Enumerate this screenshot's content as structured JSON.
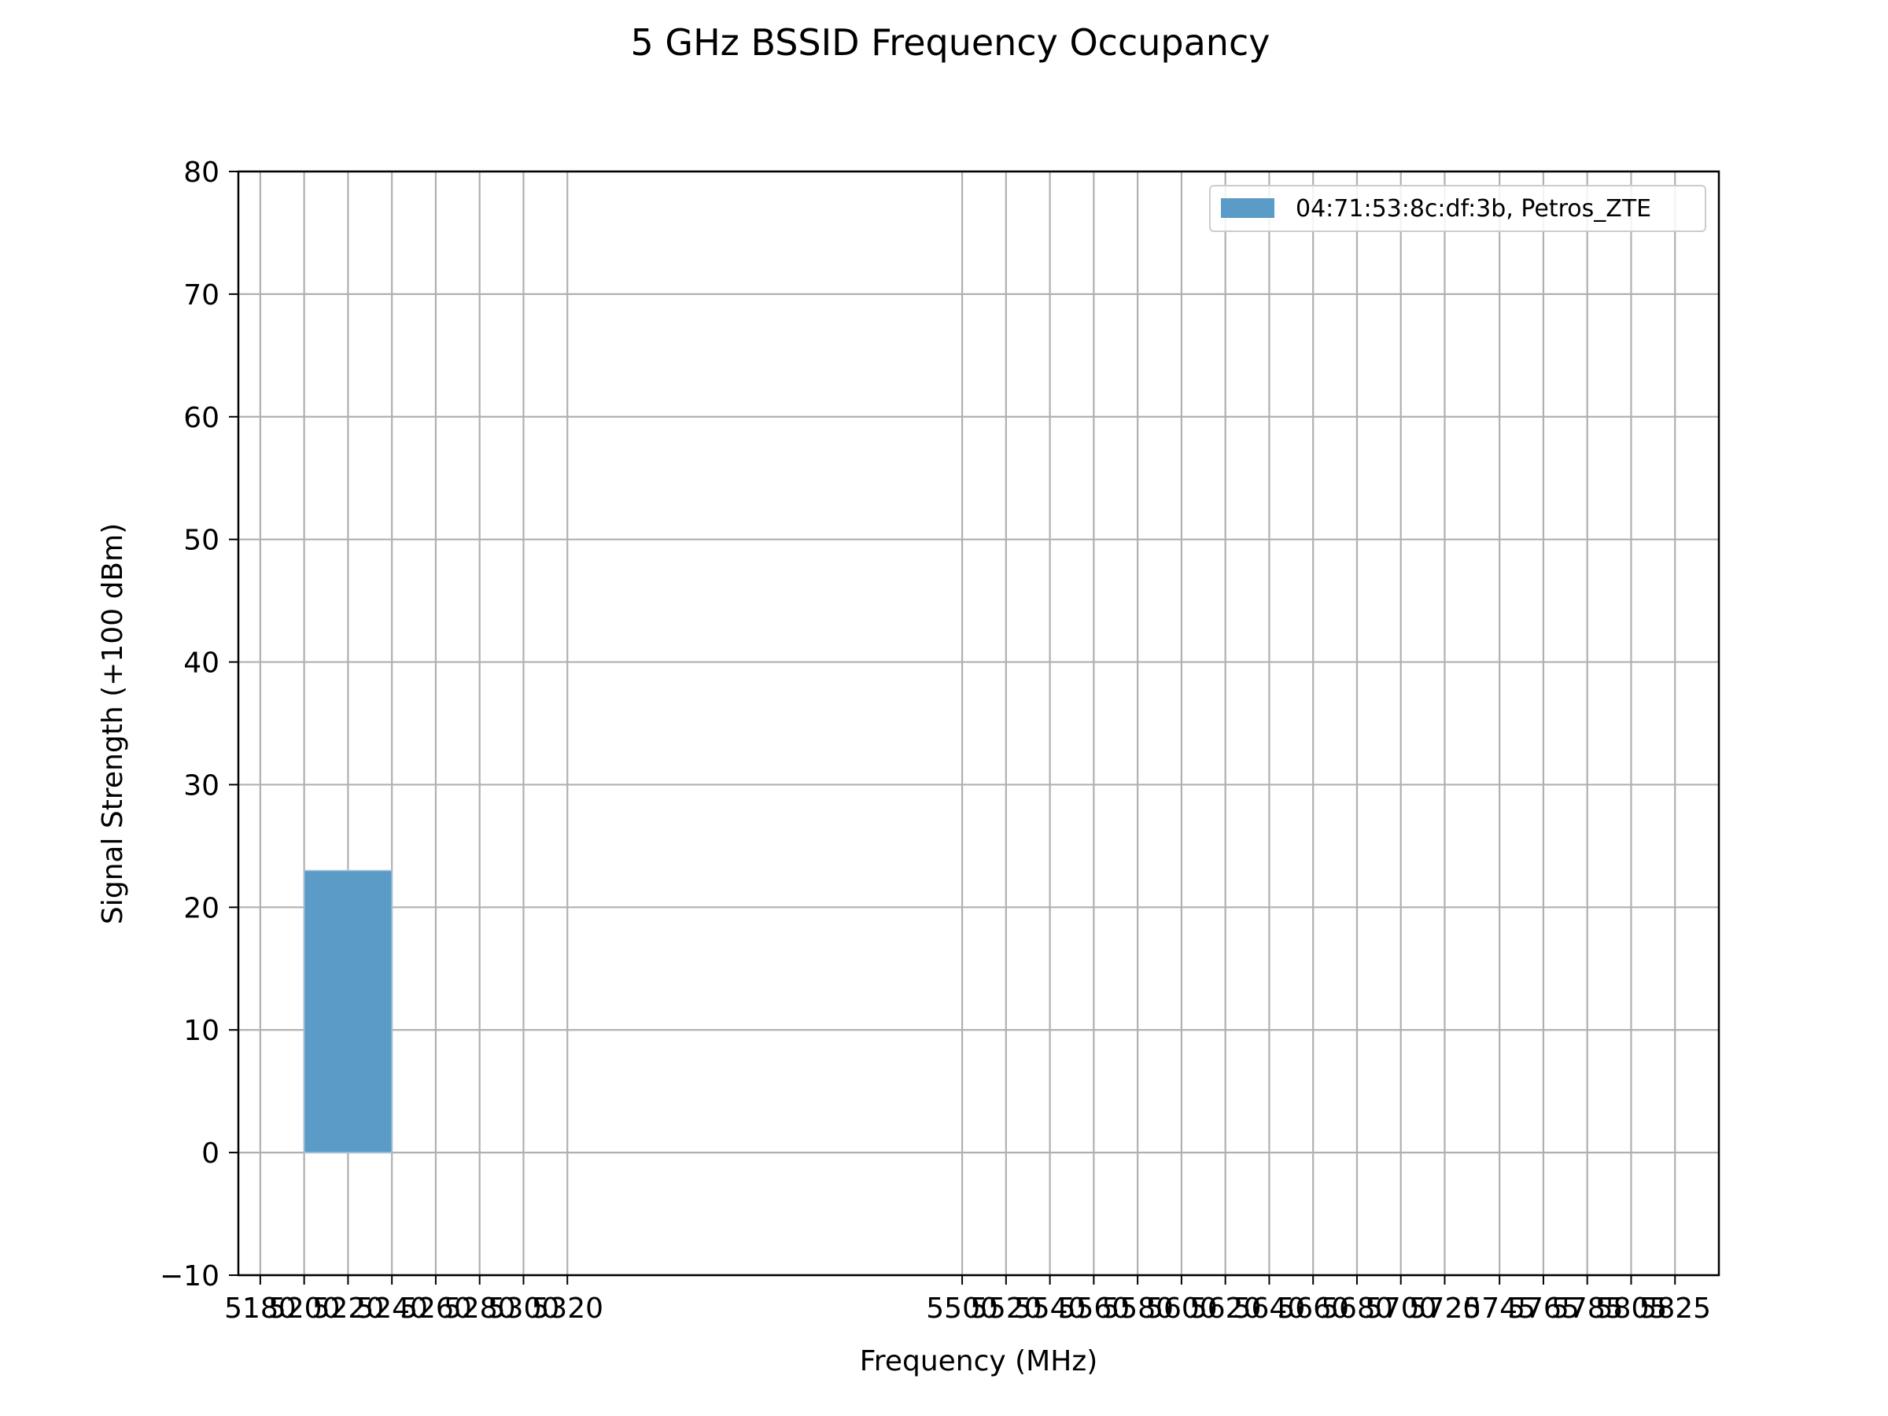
{
  "chart_data": {
    "type": "bar",
    "title": "5 GHz BSSID Frequency Occupancy",
    "xlabel": "Frequency (MHz)",
    "ylabel": "Signal Strength (+100 dBm)",
    "xlim": [
      5170,
      5845
    ],
    "ylim": [
      -10,
      80
    ],
    "x_ticks": [
      5180,
      5200,
      5220,
      5240,
      5260,
      5280,
      5300,
      5320,
      5500,
      5520,
      5540,
      5560,
      5580,
      5600,
      5620,
      5640,
      5660,
      5680,
      5700,
      5720,
      5745,
      5765,
      5785,
      5805,
      5825
    ],
    "y_ticks": [
      -10,
      0,
      10,
      20,
      30,
      40,
      50,
      60,
      70,
      80
    ],
    "y_tick_labels": [
      "−10",
      "0",
      "10",
      "20",
      "30",
      "40",
      "50",
      "60",
      "70",
      "80"
    ],
    "grid": true,
    "legend_position": "upper right",
    "series": [
      {
        "name": "04:71:53:8c:df:3b, Petros_ZTE",
        "color": "#5b9bc8",
        "bars": [
          {
            "x_start": 5200,
            "x_end": 5240,
            "value": 23
          }
        ]
      }
    ]
  }
}
